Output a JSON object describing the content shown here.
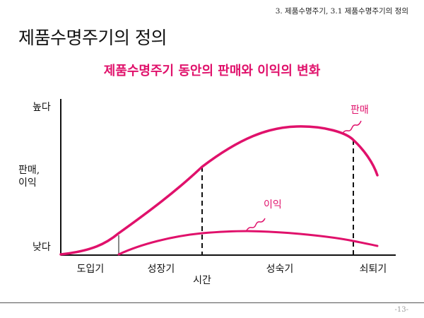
{
  "header": {
    "caption": "3. 제품수명주기, 3.1 제품수명주기의 정의"
  },
  "slide": {
    "title": "제품수명주기의 정의"
  },
  "diagram": {
    "title": "제품수명주기 동안의 판매와 이익의 변화",
    "y_axis": {
      "high": "높다",
      "label_line1": "판매,",
      "label_line2": "이익",
      "low": "낮다"
    },
    "x_axis": {
      "label": "시간",
      "stages": [
        "도입기",
        "성장기",
        "성숙기",
        "쇠퇴기"
      ]
    },
    "curves": {
      "sales": "판매",
      "profit": "이익"
    },
    "accent_color": "#e0116b"
  },
  "footer": {
    "page": "-13-"
  }
}
